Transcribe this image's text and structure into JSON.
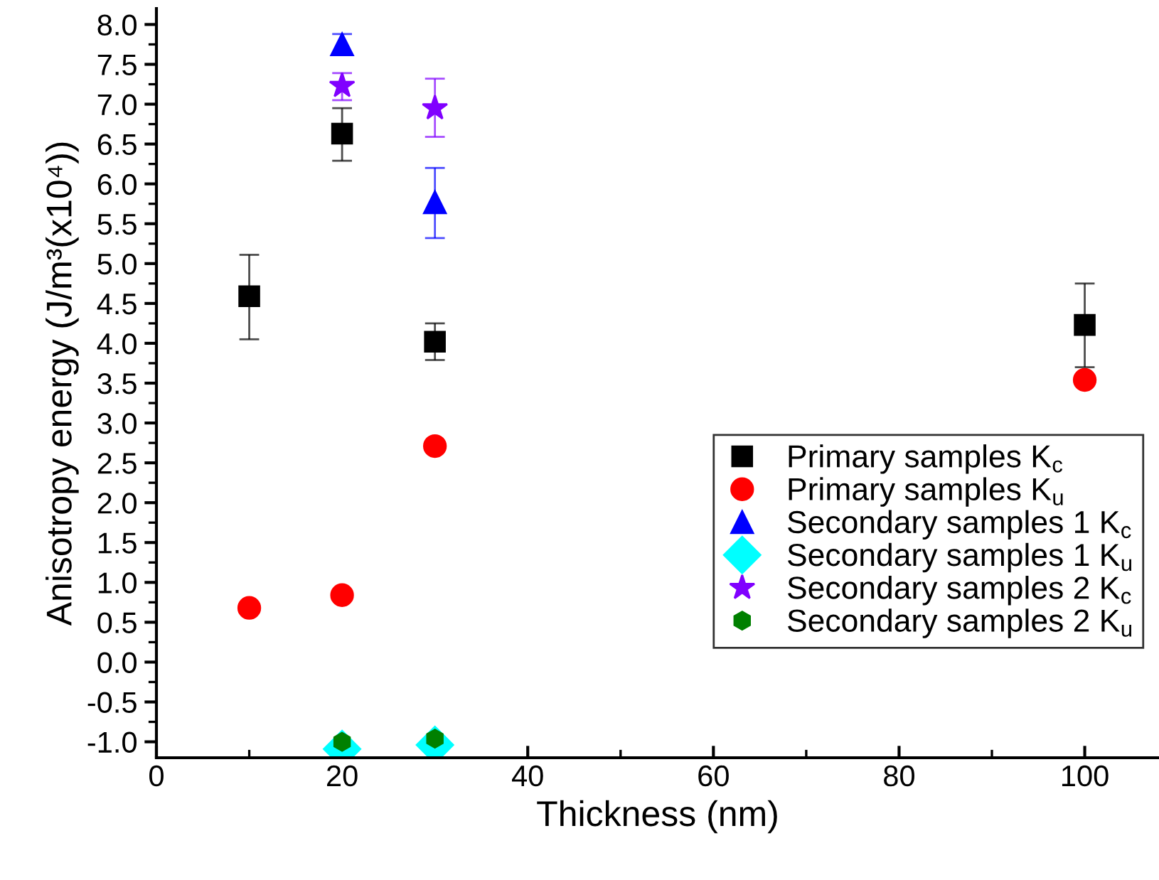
{
  "chart_data": {
    "type": "scatter",
    "xlabel": "Thickness (nm)",
    "ylabel": "Anisotropy energy (J/m³(x10⁴))",
    "xlim": [
      0,
      108
    ],
    "xticks": [
      0,
      20,
      40,
      60,
      80,
      100
    ],
    "ylim": [
      -1.2,
      8.2
    ],
    "yticks": [
      {
        "value": -1.0,
        "label": "-1.0"
      },
      {
        "value": -0.5,
        "label": "-0.5"
      },
      {
        "value": 0.0,
        "label": "0.0"
      },
      0.5,
      {
        "value": 1.0,
        "label": "1.0"
      },
      1.5,
      {
        "value": 2.0,
        "label": "2.0"
      },
      2.5,
      {
        "value": 3.0,
        "label": "3.0"
      },
      3.5,
      {
        "value": 4.0,
        "label": "4.0"
      },
      4.5,
      {
        "value": 5.0,
        "label": "5.0"
      },
      5.5,
      {
        "value": 6.0,
        "label": "6.0"
      },
      6.5,
      {
        "value": 7.0,
        "label": "7.0"
      },
      7.5,
      {
        "value": 8.0,
        "label": "8.0"
      }
    ],
    "grid": false,
    "legend": "right",
    "series": [
      {
        "name": "Primary samples K$_{c}$",
        "color": "#000000",
        "marker": "square",
        "x": [
          10,
          20,
          30,
          100
        ],
        "values": [
          4.59,
          6.63,
          4.02,
          4.23
        ],
        "errors": [
          [
            4.05,
            5.11
          ],
          [
            6.29,
            6.95
          ],
          [
            3.79,
            4.25
          ],
          [
            3.7,
            4.75
          ]
        ]
      },
      {
        "name": "Primary samples K$_{u}$",
        "color": "#ff0000",
        "marker": "circle",
        "x": [
          10,
          20,
          30,
          100
        ],
        "values": [
          0.68,
          0.84,
          2.71,
          3.54
        ]
      },
      {
        "name": "Secondary samples 1 K$_{c}$",
        "color": "#0000ff",
        "marker": "triangle",
        "x": [
          20,
          30
        ],
        "values": [
          7.75,
          5.77
        ],
        "errors": [
          [
            7.63,
            7.88
          ],
          [
            5.32,
            6.2
          ]
        ]
      },
      {
        "name": "Secondary samples 1 K$_{u}$",
        "color": "#00ffff",
        "marker": "diamond",
        "x": [
          20,
          30
        ],
        "values": [
          -1.09,
          -1.04
        ]
      },
      {
        "name": "Secondary samples 2 K$_{c}$",
        "color": "#8000ff",
        "marker": "star",
        "x": [
          20,
          30
        ],
        "values": [
          7.23,
          6.95
        ],
        "errors": [
          [
            7.05,
            7.39
          ],
          [
            6.59,
            7.32
          ]
        ]
      },
      {
        "name": "Secondary samples 2 K$_{u}$",
        "color": "#008000",
        "x": [
          20,
          30
        ],
        "values": [
          -1.0,
          -0.96
        ]
      }
    ]
  }
}
